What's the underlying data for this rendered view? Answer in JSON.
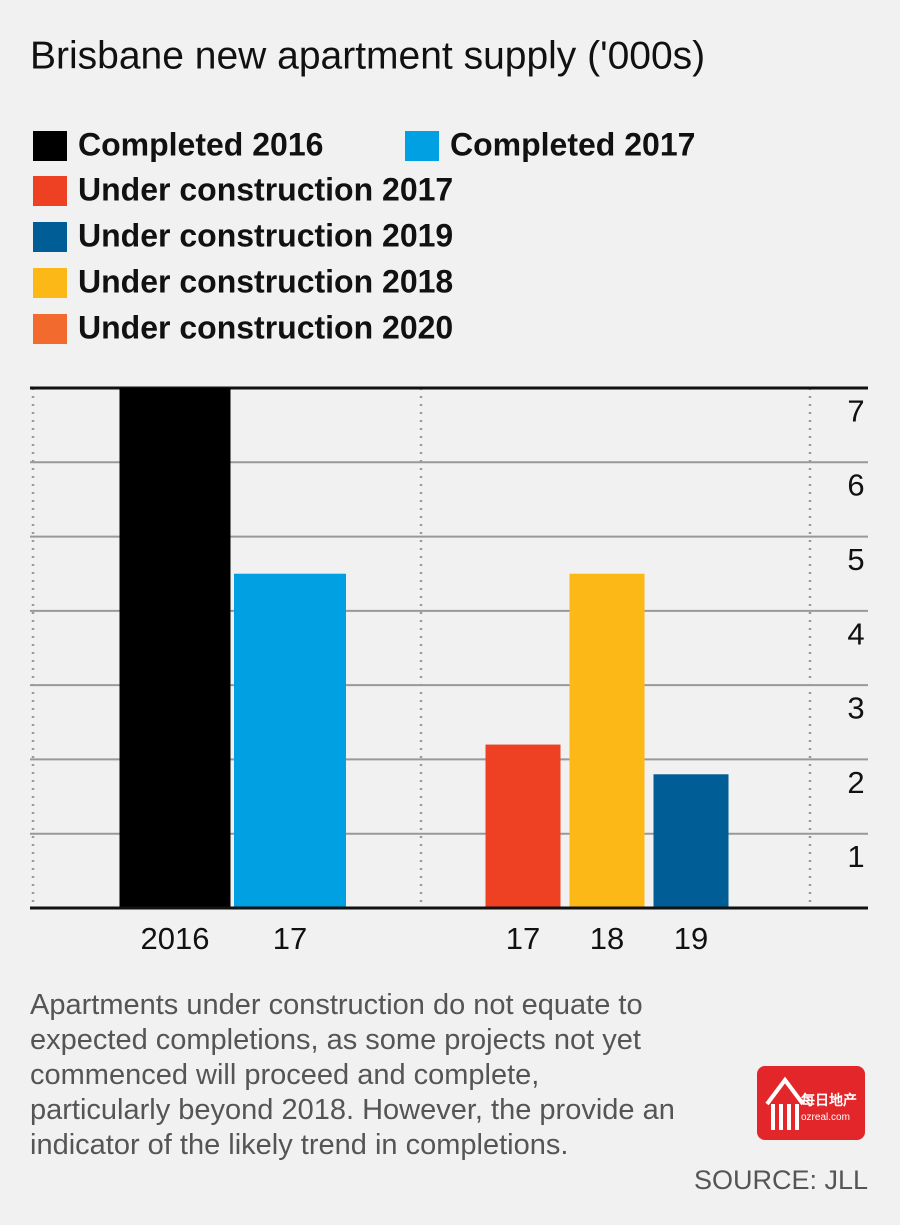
{
  "chart_data": {
    "type": "bar",
    "title": "Brisbane new apartment supply ('000s)",
    "categories": [
      "2016",
      "17",
      null,
      "17",
      "18",
      "19"
    ],
    "series": [
      {
        "name": "Completed 2016",
        "color": "#000000",
        "values": [
          7,
          null,
          null,
          null,
          null,
          null
        ]
      },
      {
        "name": "Completed 2017",
        "color": "#00a0e2",
        "values": [
          null,
          4.5,
          null,
          null,
          null,
          null
        ]
      },
      {
        "name": "Under construction 2017",
        "color": "#ee4123",
        "values": [
          null,
          null,
          null,
          2.2,
          null,
          null
        ]
      },
      {
        "name": "Under construction 2019",
        "color": "#005d95",
        "values": [
          null,
          null,
          null,
          null,
          null,
          1.8
        ]
      },
      {
        "name": "Under construction 2018",
        "color": "#fbb817",
        "values": [
          null,
          null,
          null,
          null,
          4.5,
          null
        ]
      },
      {
        "name": "Under construction 2020",
        "color": "#f26a2e",
        "values": [
          null,
          null,
          null,
          null,
          null,
          null
        ]
      }
    ],
    "ylim": [
      0,
      7
    ],
    "yticks": [
      1,
      2,
      3,
      4,
      5,
      6,
      7
    ],
    "grid": true,
    "note": "Apartments under construction do not equate to expected completions, as some projects not yet commenced will proceed and complete, particularly beyond 2018. However, the provide an indicator of the likely trend in completions.",
    "source": "SOURCE: JLL"
  },
  "logo": {
    "name": "每日地产",
    "url": "ozreal.com"
  }
}
